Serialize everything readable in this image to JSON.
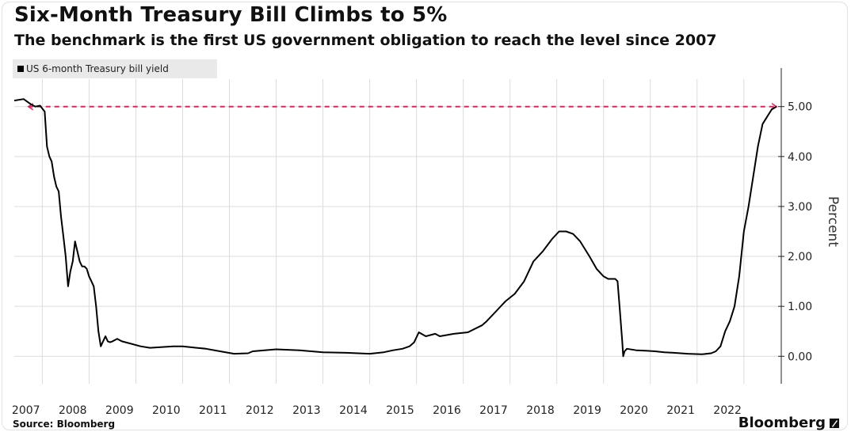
{
  "title": "Six-Month Treasury Bill Climbs to 5%",
  "subtitle": "The benchmark is the first US government obligation to reach the level since 2007",
  "legend": {
    "label": "US 6-month Treasury bill yield"
  },
  "source": "Source: Bloomberg",
  "brand": "Bloomberg",
  "colors": {
    "line": "#000000",
    "reference_line": "#e0245e",
    "grid": "#dcdcdc",
    "axis": "#222222"
  },
  "chart_data": {
    "type": "line",
    "title": "Six-Month Treasury Bill Climbs to 5%",
    "subtitle": "The benchmark is the first US government obligation to reach the level since 2007",
    "ylabel": "Percent",
    "xlim": [
      2006.9,
      2023.3
    ],
    "ylim": [
      -0.55,
      5.55
    ],
    "y_ticks": [
      0,
      1,
      2,
      3,
      4,
      5
    ],
    "y_tick_labels": [
      "0.00",
      "1.00",
      "2.00",
      "3.00",
      "4.00",
      "5.00"
    ],
    "x_tick_labels": [
      "2007",
      "2008",
      "2009",
      "2010",
      "2011",
      "2012",
      "2013",
      "2014",
      "2015",
      "2016",
      "2017",
      "2018",
      "2019",
      "2020",
      "2021",
      "2022"
    ],
    "grid": true,
    "legend_position": "top-left",
    "series": [
      {
        "name": "US 6-month Treasury bill yield",
        "x": [
          2006.9,
          2007.1,
          2007.25,
          2007.35,
          2007.45,
          2007.55,
          2007.6,
          2007.65,
          2007.7,
          2007.75,
          2007.8,
          2007.85,
          2007.9,
          2007.95,
          2008.0,
          2008.05,
          2008.1,
          2008.15,
          2008.2,
          2008.3,
          2008.35,
          2008.4,
          2008.45,
          2008.5,
          2008.55,
          2008.6,
          2008.65,
          2008.7,
          2008.75,
          2008.8,
          2008.85,
          2008.9,
          2008.95,
          2009.0,
          2009.1,
          2009.2,
          2009.4,
          2009.6,
          2009.8,
          2010.0,
          2010.3,
          2010.5,
          2010.8,
          2011.0,
          2011.3,
          2011.6,
          2011.9,
          2012.0,
          2012.5,
          2013.0,
          2013.5,
          2014.0,
          2014.5,
          2014.8,
          2015.0,
          2015.2,
          2015.35,
          2015.45,
          2015.55,
          2015.7,
          2015.9,
          2016.0,
          2016.3,
          2016.6,
          2016.9,
          2017.0,
          2017.2,
          2017.4,
          2017.6,
          2017.8,
          2018.0,
          2018.2,
          2018.4,
          2018.55,
          2018.7,
          2018.85,
          2019.0,
          2019.2,
          2019.35,
          2019.5,
          2019.6,
          2019.7,
          2019.75,
          2019.8,
          2019.85,
          2019.9,
          2019.92,
          2019.95,
          2020.0,
          2020.2,
          2020.4,
          2020.6,
          2020.8,
          2021.0,
          2021.3,
          2021.6,
          2021.8,
          2021.9,
          2022.0,
          2022.1,
          2022.2,
          2022.3,
          2022.4,
          2022.5,
          2022.6,
          2022.7,
          2022.8,
          2022.9,
          2023.0,
          2023.1,
          2023.2
        ],
        "values": [
          5.12,
          5.15,
          5.05,
          5.0,
          5.02,
          4.9,
          4.2,
          4.0,
          3.9,
          3.6,
          3.4,
          3.3,
          2.8,
          2.4,
          2.0,
          1.4,
          1.7,
          1.9,
          2.3,
          1.9,
          1.8,
          1.8,
          1.75,
          1.6,
          1.5,
          1.4,
          1.0,
          0.5,
          0.2,
          0.3,
          0.4,
          0.3,
          0.28,
          0.3,
          0.35,
          0.3,
          0.25,
          0.2,
          0.17,
          0.18,
          0.2,
          0.2,
          0.17,
          0.15,
          0.1,
          0.05,
          0.06,
          0.1,
          0.14,
          0.12,
          0.08,
          0.07,
          0.05,
          0.08,
          0.12,
          0.15,
          0.2,
          0.28,
          0.48,
          0.4,
          0.45,
          0.4,
          0.45,
          0.48,
          0.62,
          0.7,
          0.9,
          1.1,
          1.25,
          1.5,
          1.9,
          2.1,
          2.35,
          2.5,
          2.5,
          2.45,
          2.3,
          2.0,
          1.75,
          1.6,
          1.55,
          1.55,
          1.55,
          1.5,
          0.9,
          0.3,
          0.0,
          0.1,
          0.15,
          0.12,
          0.11,
          0.1,
          0.08,
          0.07,
          0.05,
          0.04,
          0.06,
          0.1,
          0.2,
          0.5,
          0.7,
          1.0,
          1.6,
          2.5,
          3.0,
          3.6,
          4.2,
          4.65,
          4.8,
          4.95,
          5.0
        ]
      }
    ],
    "reference_line": {
      "y": 5.0,
      "x_start": 2007.2,
      "x_end": 2023.2
    }
  }
}
